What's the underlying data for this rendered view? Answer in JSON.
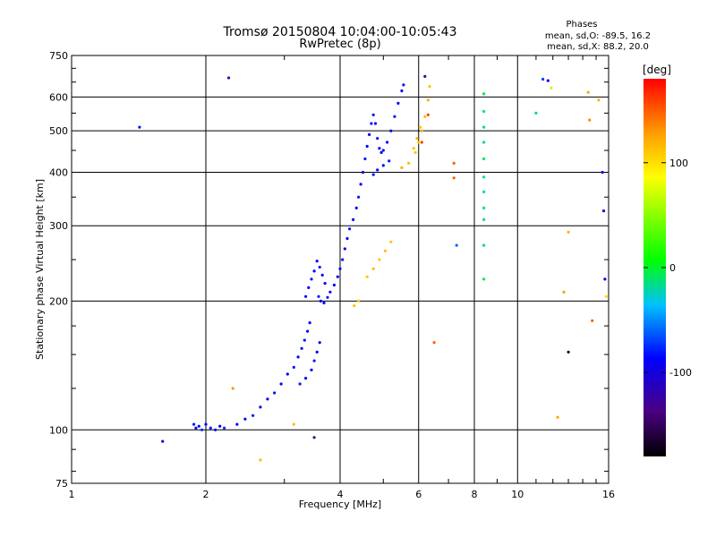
{
  "chart_data": {
    "type": "scatter",
    "title": "Tromsø 20150804 10:04:00-10:05:43",
    "subtitle": "RwPretec (8p)",
    "stats": {
      "heading": "Phases",
      "line1": "mean, sd,O: -89.5, 16.2",
      "line2": "mean, sd,X:  88.2, 20.0"
    },
    "xlabel": "Frequency [MHz]",
    "ylabel": "Stationary phase Virtual Height [km]",
    "xscale": "log",
    "yscale": "log",
    "xlim": [
      1,
      16
    ],
    "ylim": [
      75,
      750
    ],
    "xticks": [
      {
        "value": 1,
        "label": "1"
      },
      {
        "value": 2,
        "label": "2"
      },
      {
        "value": 4,
        "label": "4"
      },
      {
        "value": 6,
        "label": "6"
      },
      {
        "value": 8,
        "label": "8"
      },
      {
        "value": 10,
        "label": "10"
      },
      {
        "value": 16,
        "label": "16"
      }
    ],
    "yticks": [
      {
        "value": 75,
        "label": "75"
      },
      {
        "value": 100,
        "label": "100"
      },
      {
        "value": 200,
        "label": "200"
      },
      {
        "value": 300,
        "label": "300"
      },
      {
        "value": 400,
        "label": "400"
      },
      {
        "value": 500,
        "label": "500"
      },
      {
        "value": 600,
        "label": "600"
      },
      {
        "value": 750,
        "label": "750"
      }
    ],
    "grid": true,
    "colorbar": {
      "label": "[deg]",
      "range": [
        -180,
        180
      ],
      "ticks": [
        {
          "value": 100,
          "label": "100"
        },
        {
          "value": 0,
          "label": "0"
        },
        {
          "value": -100,
          "label": "-100"
        }
      ]
    },
    "points": [
      [
        1.42,
        510,
        -80
      ],
      [
        1.6,
        94,
        -110
      ],
      [
        2.25,
        665,
        -130
      ],
      [
        1.88,
        103,
        -80
      ],
      [
        1.9,
        101,
        -90
      ],
      [
        1.93,
        102,
        -85
      ],
      [
        1.96,
        100,
        -75
      ],
      [
        2.0,
        103,
        -90
      ],
      [
        2.05,
        101,
        -80
      ],
      [
        2.1,
        100,
        -85
      ],
      [
        2.15,
        102,
        -90
      ],
      [
        2.2,
        101,
        -75
      ],
      [
        2.35,
        103,
        -85
      ],
      [
        2.45,
        106,
        -90
      ],
      [
        2.55,
        108,
        -80
      ],
      [
        2.65,
        113,
        -85
      ],
      [
        2.75,
        118,
        -90
      ],
      [
        2.85,
        122,
        -80
      ],
      [
        2.95,
        128,
        -85
      ],
      [
        3.05,
        135,
        -90
      ],
      [
        3.15,
        140,
        -80
      ],
      [
        3.22,
        148,
        -85
      ],
      [
        3.28,
        155,
        -90
      ],
      [
        3.33,
        162,
        -80
      ],
      [
        3.38,
        170,
        -85
      ],
      [
        3.42,
        178,
        -90
      ],
      [
        3.25,
        128,
        -80
      ],
      [
        3.35,
        132,
        -85
      ],
      [
        3.45,
        138,
        -90
      ],
      [
        3.5,
        145,
        -80
      ],
      [
        3.55,
        152,
        -85
      ],
      [
        3.6,
        160,
        -90
      ],
      [
        3.35,
        205,
        -85
      ],
      [
        3.4,
        215,
        -90
      ],
      [
        3.45,
        225,
        -80
      ],
      [
        3.5,
        235,
        -85
      ],
      [
        3.55,
        248,
        -90
      ],
      [
        3.6,
        240,
        -80
      ],
      [
        3.65,
        230,
        -85
      ],
      [
        3.7,
        220,
        -90
      ],
      [
        3.58,
        205,
        -80
      ],
      [
        3.62,
        200,
        -85
      ],
      [
        3.68,
        198,
        -90
      ],
      [
        3.75,
        204,
        -80
      ],
      [
        3.8,
        210,
        -85
      ],
      [
        3.88,
        218,
        -90
      ],
      [
        3.95,
        228,
        -85
      ],
      [
        4.0,
        238,
        -90
      ],
      [
        4.05,
        250,
        -80
      ],
      [
        4.1,
        265,
        -85
      ],
      [
        4.15,
        280,
        -90
      ],
      [
        4.2,
        295,
        -80
      ],
      [
        4.28,
        310,
        -85
      ],
      [
        4.35,
        330,
        -90
      ],
      [
        4.4,
        350,
        -80
      ],
      [
        4.45,
        375,
        -85
      ],
      [
        4.5,
        400,
        -90
      ],
      [
        4.55,
        430,
        -80
      ],
      [
        4.6,
        460,
        -85
      ],
      [
        4.65,
        490,
        -90
      ],
      [
        4.7,
        520,
        -80
      ],
      [
        4.75,
        545,
        -85
      ],
      [
        4.8,
        520,
        -90
      ],
      [
        4.85,
        480,
        -80
      ],
      [
        4.9,
        455,
        -85
      ],
      [
        4.95,
        445,
        -90
      ],
      [
        5.0,
        450,
        -80
      ],
      [
        5.1,
        470,
        -85
      ],
      [
        5.2,
        500,
        -90
      ],
      [
        5.3,
        540,
        -80
      ],
      [
        5.4,
        580,
        -85
      ],
      [
        5.5,
        620,
        -90
      ],
      [
        5.55,
        640,
        -80
      ],
      [
        4.75,
        395,
        -80
      ],
      [
        4.85,
        405,
        -85
      ],
      [
        5.0,
        415,
        -90
      ],
      [
        5.15,
        425,
        -80
      ],
      [
        4.6,
        228,
        110
      ],
      [
        4.75,
        238,
        115
      ],
      [
        4.9,
        250,
        110
      ],
      [
        5.05,
        262,
        115
      ],
      [
        5.2,
        275,
        110
      ],
      [
        4.3,
        195,
        112
      ],
      [
        4.4,
        200,
        110
      ],
      [
        5.5,
        410,
        120
      ],
      [
        5.7,
        420,
        115
      ],
      [
        5.9,
        445,
        112
      ],
      [
        6.0,
        470,
        110
      ],
      [
        6.1,
        500,
        118
      ],
      [
        6.2,
        540,
        115
      ],
      [
        6.3,
        590,
        120
      ],
      [
        6.35,
        635,
        112
      ],
      [
        5.85,
        455,
        110
      ],
      [
        5.95,
        480,
        115
      ],
      [
        6.05,
        510,
        112
      ],
      [
        6.1,
        470,
        160
      ],
      [
        6.3,
        545,
        160
      ],
      [
        7.2,
        420,
        150
      ],
      [
        7.2,
        388,
        150
      ],
      [
        7.3,
        270,
        -60
      ],
      [
        6.5,
        160,
        150
      ],
      [
        6.2,
        670,
        -120
      ],
      [
        8.4,
        610,
        -10
      ],
      [
        8.4,
        555,
        -10
      ],
      [
        8.4,
        510,
        -15
      ],
      [
        8.4,
        470,
        -20
      ],
      [
        8.4,
        430,
        -10
      ],
      [
        8.4,
        390,
        -15
      ],
      [
        8.4,
        360,
        -20
      ],
      [
        8.4,
        330,
        -10
      ],
      [
        8.4,
        310,
        -15
      ],
      [
        8.4,
        270,
        -20
      ],
      [
        8.4,
        225,
        -10
      ],
      [
        11.0,
        550,
        -20
      ],
      [
        11.4,
        660,
        -70
      ],
      [
        11.7,
        655,
        -90
      ],
      [
        11.9,
        630,
        70
      ],
      [
        13.0,
        290,
        120
      ],
      [
        12.7,
        210,
        130
      ],
      [
        12.3,
        107,
        125
      ],
      [
        13.0,
        152,
        -160
      ],
      [
        14.4,
        615,
        125
      ],
      [
        14.5,
        530,
        135
      ],
      [
        14.7,
        180,
        150
      ],
      [
        15.2,
        590,
        120
      ],
      [
        15.5,
        400,
        -90
      ],
      [
        15.6,
        325,
        -110
      ],
      [
        15.7,
        225,
        -90
      ],
      [
        15.8,
        205,
        100
      ],
      [
        3.15,
        103,
        115
      ],
      [
        2.65,
        85,
        115
      ],
      [
        2.3,
        125,
        130
      ],
      [
        3.5,
        96,
        -140
      ]
    ]
  }
}
